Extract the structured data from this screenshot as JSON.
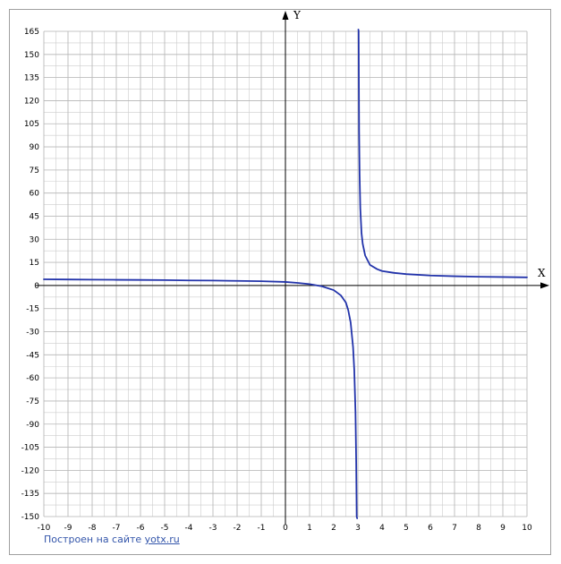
{
  "credit": {
    "text": "Построен на сайте",
    "link_label": "yotx.ru"
  },
  "colors": {
    "curve": "#2233aa",
    "grid": "#cccccc",
    "axis": "#000000"
  },
  "chart_data": {
    "type": "line",
    "title": "",
    "xlabel": "X",
    "ylabel": "Y",
    "xlim": [
      -10,
      10
    ],
    "ylim": [
      -160,
      170
    ],
    "x_ticks": [
      -10,
      -9,
      -8,
      -7,
      -6,
      -5,
      -4,
      -3,
      -2,
      -1,
      0,
      1,
      2,
      3,
      4,
      5,
      6,
      7,
      8,
      9,
      10
    ],
    "y_ticks": [
      165,
      150,
      135,
      120,
      105,
      90,
      75,
      60,
      45,
      30,
      15,
      0,
      -15,
      -30,
      -45,
      -60,
      -75,
      -90,
      -105,
      -120,
      -135,
      -150
    ],
    "grid": true,
    "vertical_asymptote": 3,
    "series": [
      {
        "segment": "left-branch",
        "x": [
          -10,
          -9,
          -8,
          -7,
          -6,
          -5,
          -4,
          -3,
          -2,
          -1,
          0,
          0.5,
          1,
          1.5,
          2,
          2.3,
          2.5,
          2.6,
          2.7,
          2.8,
          2.85,
          2.9,
          2.93,
          2.95,
          2.97
        ],
        "y": [
          4,
          3.9,
          3.8,
          3.7,
          3.6,
          3.5,
          3.3,
          3.2,
          3,
          2.8,
          2.3,
          1.7,
          0.9,
          -0.5,
          -3,
          -6.5,
          -11,
          -16,
          -24,
          -40,
          -55,
          -82,
          -115,
          -150,
          -160
        ]
      },
      {
        "segment": "right-branch",
        "x": [
          3.02,
          3.03,
          3.05,
          3.07,
          3.1,
          3.15,
          3.2,
          3.3,
          3.5,
          3.8,
          4,
          4.5,
          5,
          6,
          7,
          8,
          9,
          10
        ],
        "y": [
          170,
          165,
          100,
          72,
          50,
          34,
          27,
          19.5,
          13.4,
          10.6,
          9.4,
          8.2,
          7.4,
          6.5,
          6,
          5.7,
          5.5,
          5.3
        ]
      }
    ]
  }
}
